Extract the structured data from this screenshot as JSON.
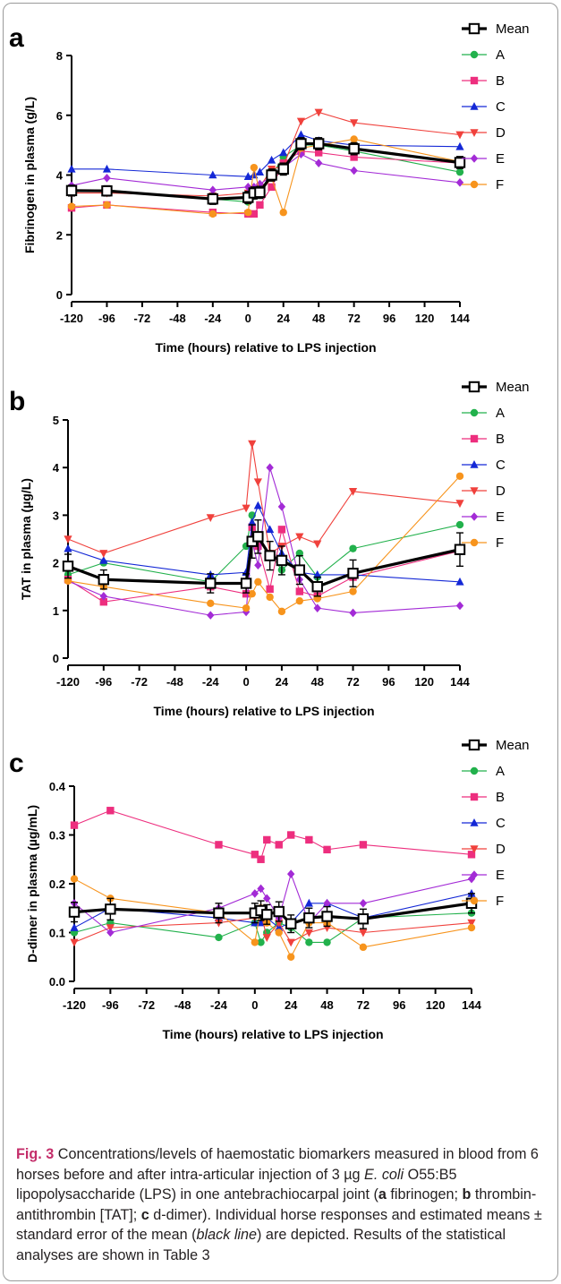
{
  "colors": {
    "Mean": "#000000",
    "A": "#22b14c",
    "B": "#ed2e7e",
    "C": "#1428d6",
    "D": "#f0413c",
    "E": "#a32bd6",
    "F": "#f7941d"
  },
  "caption": {
    "fig_label": "Fig. 3",
    "text_1": " Concentrations/levels of haemostatic biomarkers measured in blood from 6 horses before and after intra-articular injection of 3 µg ",
    "species": "E. coli",
    "text_2": " O55:B5 lipopolysaccharide (LPS) in one antebrachiocarpal joint (",
    "label_a": "a",
    "text_3": " fibrinogen; ",
    "label_b": "b",
    "text_4": " thrombin-antithrombin [TAT]; ",
    "label_c": "c",
    "text_5": " d-dimer). Individual horse responses and estimated means ± standard error of the mean (",
    "black_line": "black line",
    "text_6": ") are depicted. Results of the statistical analyses are shown in Table 3"
  },
  "chart_data": [
    {
      "panel": "a",
      "type": "line",
      "xlabel": "Time (hours) relative to LPS injection",
      "ylabel": "Fibrinogen in plasma (g/L)",
      "xlim": [
        -120,
        144
      ],
      "ylim": [
        0,
        8
      ],
      "xticks": [
        -120,
        -96,
        -72,
        -48,
        -24,
        0,
        24,
        48,
        72,
        96,
        120,
        144
      ],
      "yticks": [
        0,
        2,
        4,
        6,
        8
      ],
      "y_tick_labels": [
        "0",
        "2",
        "4",
        "6",
        "8"
      ],
      "legend_position": "top-right",
      "series": [
        {
          "name": "Mean",
          "marker": "square-open",
          "x": [
            -120,
            -96,
            -24,
            0,
            4,
            8,
            16,
            24,
            36,
            48,
            72,
            144
          ],
          "y": [
            3.48,
            3.47,
            3.2,
            3.25,
            3.4,
            3.42,
            4.0,
            4.2,
            5.05,
            5.05,
            4.88,
            4.42
          ],
          "err": [
            0.18,
            0.17,
            0.18,
            0.2,
            0.2,
            0.2,
            0.2,
            0.2,
            0.2,
            0.2,
            0.2,
            0.2
          ]
        },
        {
          "name": "A",
          "marker": "circle",
          "x": [
            -120,
            -96,
            -24,
            0,
            4,
            8,
            16,
            24,
            36,
            48,
            72,
            144
          ],
          "y": [
            3.5,
            3.5,
            3.2,
            3.1,
            3.3,
            3.5,
            4.0,
            4.6,
            5.0,
            5.0,
            4.8,
            4.1
          ]
        },
        {
          "name": "B",
          "marker": "square",
          "x": [
            -120,
            -96,
            -24,
            0,
            4,
            8,
            16,
            24,
            36,
            48,
            72,
            144
          ],
          "y": [
            2.9,
            3.0,
            2.75,
            2.7,
            2.7,
            3.0,
            3.6,
            4.4,
            4.8,
            4.75,
            4.6,
            4.4
          ]
        },
        {
          "name": "C",
          "marker": "triangle-up",
          "x": [
            -120,
            -96,
            -24,
            0,
            4,
            8,
            16,
            24,
            36,
            48,
            72,
            144
          ],
          "y": [
            4.2,
            4.2,
            4.0,
            3.95,
            4.0,
            4.1,
            4.5,
            4.75,
            5.35,
            5.15,
            5.0,
            4.95
          ]
        },
        {
          "name": "D",
          "marker": "triangle-down",
          "x": [
            -120,
            -96,
            -24,
            0,
            4,
            8,
            16,
            24,
            36,
            48,
            72,
            144
          ],
          "y": [
            3.4,
            3.4,
            3.3,
            3.4,
            3.5,
            3.6,
            4.2,
            4.3,
            5.8,
            6.1,
            5.75,
            5.35
          ]
        },
        {
          "name": "E",
          "marker": "diamond",
          "x": [
            -120,
            -96,
            -24,
            0,
            4,
            8,
            16,
            24,
            36,
            48,
            72,
            144
          ],
          "y": [
            3.65,
            3.9,
            3.5,
            3.6,
            3.6,
            3.7,
            3.95,
            4.25,
            4.7,
            4.4,
            4.15,
            3.75
          ]
        },
        {
          "name": "F",
          "marker": "circle",
          "x": [
            -120,
            -96,
            -24,
            0,
            4,
            8,
            16,
            24,
            36,
            48,
            72,
            144
          ],
          "y": [
            2.95,
            3.0,
            2.7,
            2.75,
            4.25,
            3.4,
            3.9,
            2.75,
            4.9,
            5.0,
            5.2,
            4.45
          ]
        }
      ]
    },
    {
      "panel": "b",
      "type": "line",
      "xlabel": "Time (hours) relative to LPS injection",
      "ylabel": "TAT in plasma (µg/L)",
      "xlim": [
        -120,
        144
      ],
      "ylim": [
        0,
        5
      ],
      "xticks": [
        -120,
        -96,
        -72,
        -48,
        -24,
        0,
        24,
        48,
        72,
        96,
        120,
        144
      ],
      "yticks": [
        0,
        1,
        2,
        3,
        4,
        5
      ],
      "y_tick_labels": [
        "0",
        "1",
        "2",
        "3",
        "4",
        "5"
      ],
      "legend_position": "top-right",
      "series": [
        {
          "name": "Mean",
          "marker": "square-open",
          "x": [
            -120,
            -96,
            -24,
            0,
            4,
            8,
            16,
            24,
            36,
            48,
            72,
            144
          ],
          "y": [
            1.93,
            1.65,
            1.57,
            1.57,
            2.45,
            2.55,
            2.15,
            2.05,
            1.85,
            1.5,
            1.78,
            2.28
          ],
          "err": [
            0.25,
            0.2,
            0.2,
            0.2,
            0.35,
            0.35,
            0.3,
            0.3,
            0.3,
            0.2,
            0.28,
            0.35
          ]
        },
        {
          "name": "A",
          "marker": "circle",
          "x": [
            -120,
            -96,
            -24,
            0,
            4,
            8,
            16,
            24,
            36,
            48,
            72,
            144
          ],
          "y": [
            1.75,
            2.0,
            1.6,
            2.35,
            3.0,
            2.45,
            2.2,
            1.85,
            2.2,
            1.7,
            2.3,
            2.8
          ]
        },
        {
          "name": "B",
          "marker": "square",
          "x": [
            -120,
            -96,
            -24,
            0,
            4,
            8,
            16,
            24,
            36,
            48,
            72,
            144
          ],
          "y": [
            1.65,
            1.18,
            1.5,
            1.35,
            2.75,
            2.35,
            1.45,
            2.7,
            1.4,
            1.3,
            1.7,
            2.25
          ]
        },
        {
          "name": "C",
          "marker": "triangle-up",
          "x": [
            -120,
            -96,
            -24,
            0,
            4,
            8,
            16,
            24,
            36,
            48,
            72,
            144
          ],
          "y": [
            2.3,
            2.05,
            1.75,
            1.8,
            2.85,
            3.2,
            2.7,
            2.2,
            1.8,
            1.75,
            1.75,
            1.6
          ]
        },
        {
          "name": "D",
          "marker": "triangle-down",
          "x": [
            -120,
            -96,
            -24,
            0,
            4,
            8,
            16,
            24,
            36,
            48,
            72,
            144
          ],
          "y": [
            2.5,
            2.2,
            2.95,
            3.15,
            4.5,
            3.7,
            2.2,
            2.35,
            2.55,
            2.4,
            3.5,
            3.25
          ]
        },
        {
          "name": "E",
          "marker": "diamond",
          "x": [
            -120,
            -96,
            -24,
            0,
            4,
            8,
            16,
            24,
            36,
            48,
            72,
            144
          ],
          "y": [
            1.62,
            1.3,
            0.9,
            0.97,
            2.45,
            1.95,
            4.0,
            3.18,
            1.65,
            1.05,
            0.95,
            1.1
          ]
        },
        {
          "name": "F",
          "marker": "circle",
          "x": [
            -120,
            -96,
            -24,
            0,
            4,
            8,
            16,
            24,
            36,
            48,
            72,
            144
          ],
          "y": [
            1.62,
            1.5,
            1.15,
            1.05,
            1.35,
            1.6,
            1.28,
            0.98,
            1.2,
            1.25,
            1.4,
            3.82
          ]
        }
      ]
    },
    {
      "panel": "c",
      "type": "line",
      "xlabel": "Time (hours) relative to LPS injection",
      "ylabel": "D-dimer in plasma (µg/mL)",
      "xlim": [
        -120,
        144
      ],
      "ylim": [
        0,
        0.4
      ],
      "xticks": [
        -120,
        -96,
        -72,
        -48,
        -24,
        0,
        24,
        48,
        72,
        96,
        120,
        144
      ],
      "yticks": [
        0,
        0.1,
        0.2,
        0.3,
        0.4
      ],
      "y_tick_labels": [
        "0.0",
        "0.1",
        "0.2",
        "0.3",
        "0.4"
      ],
      "legend_position": "top-right",
      "series": [
        {
          "name": "Mean",
          "marker": "square-open",
          "x": [
            -120,
            -96,
            -24,
            0,
            4,
            8,
            16,
            24,
            36,
            48,
            72,
            144
          ],
          "y": [
            0.142,
            0.148,
            0.14,
            0.14,
            0.145,
            0.137,
            0.143,
            0.118,
            0.13,
            0.133,
            0.128,
            0.16
          ],
          "err": [
            0.02,
            0.022,
            0.02,
            0.02,
            0.02,
            0.02,
            0.02,
            0.018,
            0.02,
            0.02,
            0.02,
            0.02
          ]
        },
        {
          "name": "A",
          "marker": "circle",
          "x": [
            -120,
            -96,
            -24,
            0,
            4,
            8,
            16,
            24,
            36,
            48,
            72,
            144
          ],
          "y": [
            0.1,
            0.12,
            0.09,
            0.12,
            0.08,
            0.1,
            0.12,
            0.11,
            0.08,
            0.08,
            0.13,
            0.14
          ]
        },
        {
          "name": "B",
          "marker": "square",
          "x": [
            -120,
            -96,
            -24,
            0,
            4,
            8,
            16,
            24,
            36,
            48,
            72,
            144
          ],
          "y": [
            0.32,
            0.35,
            0.28,
            0.26,
            0.25,
            0.29,
            0.28,
            0.3,
            0.29,
            0.27,
            0.28,
            0.26
          ]
        },
        {
          "name": "C",
          "marker": "triangle-up",
          "x": [
            -120,
            -96,
            -24,
            0,
            4,
            8,
            16,
            24,
            36,
            48,
            72,
            144
          ],
          "y": [
            0.11,
            0.15,
            0.13,
            0.12,
            0.12,
            0.13,
            0.11,
            0.12,
            0.16,
            0.16,
            0.13,
            0.18
          ]
        },
        {
          "name": "D",
          "marker": "triangle-down",
          "x": [
            -120,
            -96,
            -24,
            0,
            4,
            8,
            16,
            24,
            36,
            48,
            72,
            144
          ],
          "y": [
            0.08,
            0.11,
            0.12,
            0.13,
            0.14,
            0.09,
            0.12,
            0.08,
            0.1,
            0.11,
            0.1,
            0.12
          ]
        },
        {
          "name": "E",
          "marker": "diamond",
          "x": [
            -120,
            -96,
            -24,
            0,
            4,
            8,
            16,
            24,
            36,
            48,
            72,
            144
          ],
          "y": [
            0.16,
            0.1,
            0.15,
            0.18,
            0.19,
            0.17,
            0.13,
            0.22,
            0.12,
            0.16,
            0.16,
            0.21
          ]
        },
        {
          "name": "F",
          "marker": "circle",
          "x": [
            -120,
            -96,
            -24,
            0,
            4,
            8,
            16,
            24,
            36,
            48,
            72,
            144
          ],
          "y": [
            0.21,
            0.17,
            0.14,
            0.08,
            0.15,
            0.12,
            0.1,
            0.05,
            0.12,
            0.12,
            0.07,
            0.11
          ]
        }
      ]
    }
  ]
}
